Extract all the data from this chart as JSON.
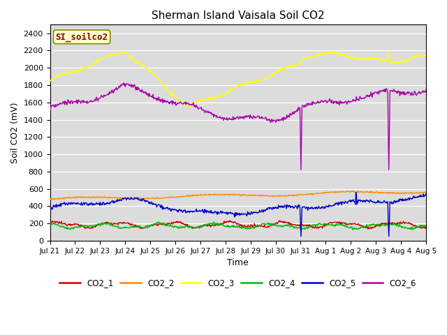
{
  "title": "Sherman Island Vaisala Soil CO2",
  "ylabel": "Soil CO2 (mV)",
  "xlabel": "Time",
  "watermark": "SI_soilco2",
  "ylim": [
    0,
    2500
  ],
  "yticks": [
    0,
    200,
    400,
    600,
    800,
    1000,
    1200,
    1400,
    1600,
    1800,
    2000,
    2200,
    2400
  ],
  "series_colors": {
    "CO2_1": "#cc0000",
    "CO2_2": "#ff8800",
    "CO2_3": "#ffff00",
    "CO2_4": "#00bb00",
    "CO2_5": "#0000cc",
    "CO2_6": "#aa00aa"
  },
  "x_tick_labels": [
    "Jul 21",
    "Jul 22",
    "Jul 23",
    "Jul 24",
    "Jul 25",
    "Jul 26",
    "Jul 27",
    "Jul 28",
    "Jul 29",
    "Jul 30",
    "Jul 31",
    "Aug 1",
    "Aug 2",
    "Aug 3",
    "Aug 4",
    "Aug 5"
  ]
}
